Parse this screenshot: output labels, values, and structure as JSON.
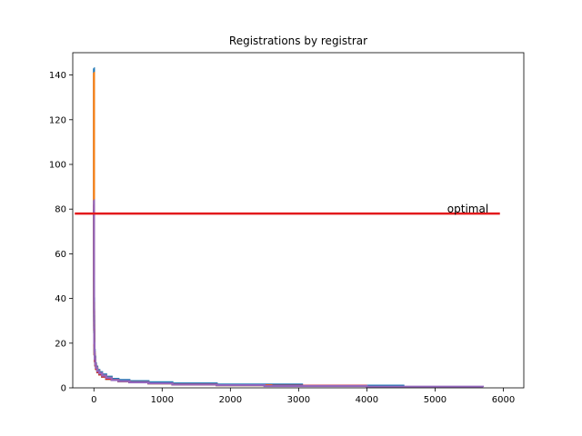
{
  "chart_data": {
    "type": "line",
    "title": "Registrations by registrar",
    "xlabel": "",
    "ylabel": "",
    "xlim": [
      -310,
      6300
    ],
    "ylim": [
      0,
      150
    ],
    "x_ticks": [
      0,
      1000,
      2000,
      3000,
      4000,
      5000,
      6000
    ],
    "y_ticks": [
      0,
      20,
      40,
      60,
      80,
      100,
      120,
      140
    ],
    "grid": false,
    "legend": "none",
    "series": [
      {
        "color": "#1f77b4",
        "x": [
          0,
          1,
          2,
          3,
          5,
          8,
          12,
          20,
          30,
          50,
          80,
          120,
          180,
          260,
          360,
          520,
          800,
          1150,
          1800,
          3050,
          4550
        ],
        "y": [
          143,
          60,
          40,
          30,
          22,
          17,
          14,
          11,
          9.5,
          8,
          7,
          6,
          5,
          4,
          3.5,
          3,
          2.5,
          2,
          1.5,
          1,
          1
        ]
      },
      {
        "color": "#ff7f0e",
        "x": [
          0,
          1,
          2,
          3,
          5,
          8,
          12,
          20,
          30,
          50,
          80,
          120,
          180,
          260,
          360,
          520,
          800,
          1150,
          1800,
          2600,
          4000
        ],
        "y": [
          141,
          55,
          38,
          28,
          20,
          16,
          13,
          10.5,
          9,
          7.5,
          6.5,
          5.5,
          4.5,
          3.5,
          3,
          2.5,
          2,
          1.5,
          1.2,
          1,
          1
        ]
      },
      {
        "color": "#2ca02c",
        "x": [
          0,
          1,
          2,
          3,
          5,
          8,
          12,
          20,
          30,
          50,
          80,
          120,
          180,
          260,
          360,
          520,
          800,
          1150,
          1800,
          2500,
          3500
        ],
        "y": [
          80,
          45,
          32,
          25,
          19,
          15,
          12,
          10,
          8.5,
          7,
          6,
          5,
          4,
          3.5,
          3,
          2.5,
          2,
          1.5,
          1.2,
          1,
          1
        ]
      },
      {
        "color": "#d62728",
        "x": [
          0,
          1,
          2,
          3,
          5,
          8,
          12,
          20,
          30,
          50,
          80,
          120,
          180,
          260,
          360,
          520,
          800,
          1150,
          1800,
          2500,
          4000
        ],
        "y": [
          82,
          48,
          34,
          26,
          19,
          15,
          12,
          10,
          8.5,
          7,
          6,
          5,
          4,
          3.5,
          3,
          2.5,
          2,
          1.5,
          1.2,
          1,
          1
        ]
      },
      {
        "color": "#9467bd",
        "x": [
          0,
          1,
          2,
          3,
          5,
          8,
          12,
          20,
          30,
          50,
          80,
          120,
          180,
          260,
          360,
          520,
          800,
          1150,
          1800,
          2500,
          4000,
          5700
        ],
        "y": [
          84,
          50,
          35,
          27,
          20,
          16,
          13,
          10.5,
          9,
          7.5,
          6.5,
          5.5,
          4.5,
          3.5,
          3,
          2.5,
          2,
          1.5,
          1.2,
          0.8,
          0.5,
          0.3
        ]
      }
    ],
    "reference_line": {
      "label": "optimal",
      "y": 78,
      "x_start": -280,
      "x_end": 5950,
      "color": "#e31a1c"
    }
  }
}
